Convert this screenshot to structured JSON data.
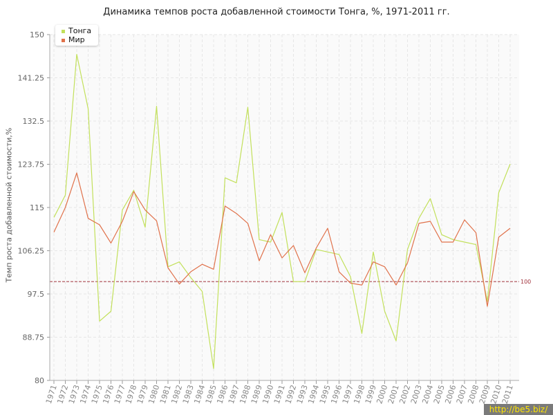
{
  "colors": {
    "tonga": "#c2e05a",
    "world": "#e0714a",
    "reference": "#a0303a",
    "grid": "#e6e6e6",
    "plot_bg": "#fafafa"
  },
  "chart_data": {
    "type": "line",
    "title": "Динамика темпов роста добавленной стоимости Тонга, %, 1971-2011 гг.",
    "xlabel": "",
    "ylabel": "Темп роста добавленной стоимости,%",
    "ylim": [
      80,
      150
    ],
    "yticks": [
      "80",
      "88.75",
      "97.5",
      "106.25",
      "115",
      "123.75",
      "132.5",
      "141.25",
      "150"
    ],
    "ytick_values": [
      80,
      88.75,
      97.5,
      106.25,
      115,
      123.75,
      132.5,
      141.25,
      150
    ],
    "grid": true,
    "legend_position": "top-left",
    "categories": [
      "1971",
      "1972",
      "1973",
      "1974",
      "1975",
      "1976",
      "1977",
      "1978",
      "1979",
      "1980",
      "1981",
      "1982",
      "1983",
      "1984",
      "1985",
      "1986",
      "1987",
      "1988",
      "1989",
      "1990",
      "1991",
      "1992",
      "1993",
      "1994",
      "1995",
      "1996",
      "1997",
      "1998",
      "1999",
      "2000",
      "2001",
      "2002",
      "2003",
      "2004",
      "2005",
      "2006",
      "2007",
      "2008",
      "2009",
      "2010",
      "2011"
    ],
    "series": [
      {
        "name": "Тонга",
        "color": "#c2e05a",
        "values": [
          113,
          117.5,
          146,
          135,
          92,
          94,
          114.5,
          118.5,
          111,
          135.5,
          103,
          104,
          100.8,
          98,
          82.4,
          121,
          120,
          135.3,
          108.5,
          108,
          114,
          100,
          100,
          106.5,
          106,
          105.5,
          101,
          89.5,
          106,
          94,
          88,
          106.5,
          112.8,
          116.8,
          109.5,
          108.5,
          108,
          107.5,
          96,
          118,
          123.8
        ]
      },
      {
        "name": "Мир",
        "color": "#e0714a",
        "values": [
          110,
          115,
          122,
          112.8,
          111.5,
          107.8,
          112.2,
          118.2,
          114.5,
          112.3,
          102.8,
          99.5,
          102,
          103.5,
          102.5,
          115.3,
          113.8,
          111.8,
          104.2,
          109.5,
          104.8,
          107.3,
          101.8,
          106.8,
          110.8,
          102,
          99.7,
          99.3,
          104,
          103,
          99.3,
          103.8,
          111.8,
          112.2,
          108,
          108,
          112.5,
          109.9,
          95,
          109,
          110.8
        ]
      }
    ],
    "reference_line": {
      "value": 100,
      "label": "100",
      "color": "#a0303a"
    }
  }
}
